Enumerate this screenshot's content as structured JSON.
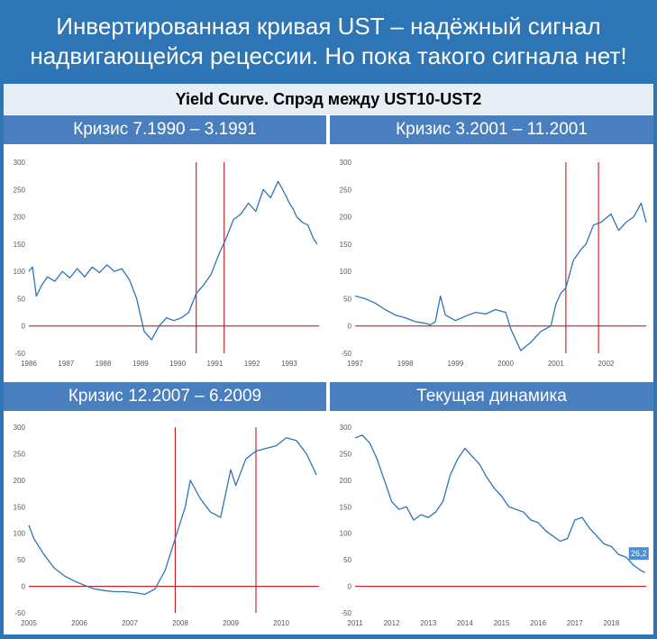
{
  "title": "Инвертированная кривая UST – надёжный сигнал\nнадвигающейся рецессии. Но пока такого сигнала нет!",
  "subtitle": "Yield Curve. Спрэд между UST10-UST2",
  "colors": {
    "header_bg": "#2e75b6",
    "panel_title_bg": "#4a7fbf",
    "line": "#2e75b6",
    "zero_line": "#c00000",
    "crisis_line": "#c00000",
    "label_bg": "#4a8fd4"
  },
  "chart_data": [
    {
      "type": "line",
      "title": "Кризис 7.1990 – 3.1991",
      "xlim": [
        1986,
        1993.8
      ],
      "ylim": [
        -50,
        300
      ],
      "yticks": [
        -50,
        0,
        50,
        100,
        150,
        200,
        250,
        300
      ],
      "xticks": [
        "1986",
        "1987",
        "1988",
        "1989",
        "1990",
        "1991",
        "1992",
        "1993"
      ],
      "crisis_markers": [
        1990.5,
        1991.25
      ],
      "series": [
        {
          "x": [
            1986.0,
            1986.1,
            1986.2,
            1986.35,
            1986.5,
            1986.7,
            1986.9,
            1987.1,
            1987.3,
            1987.5,
            1987.7,
            1987.9,
            1988.1,
            1988.3,
            1988.5,
            1988.7,
            1988.9,
            1989.0,
            1989.1,
            1989.3,
            1989.5,
            1989.7,
            1989.9,
            1990.1,
            1990.3,
            1990.5,
            1990.7,
            1990.9,
            1991.1,
            1991.3,
            1991.5,
            1991.7,
            1991.9,
            1992.1,
            1992.3,
            1992.5,
            1992.7,
            1992.9,
            1993.0,
            1993.1,
            1993.2,
            1993.35,
            1993.5,
            1993.65,
            1993.75
          ],
          "values": [
            100,
            108,
            55,
            75,
            90,
            82,
            100,
            88,
            105,
            90,
            108,
            98,
            112,
            100,
            105,
            85,
            50,
            20,
            -10,
            -25,
            0,
            15,
            10,
            15,
            25,
            60,
            75,
            95,
            130,
            160,
            195,
            205,
            225,
            210,
            250,
            235,
            265,
            240,
            225,
            215,
            200,
            190,
            185,
            160,
            150
          ]
        }
      ]
    },
    {
      "type": "line",
      "title": "Кризис 3.2001 – 11.2001",
      "xlim": [
        1997,
        2002.8
      ],
      "ylim": [
        -50,
        300
      ],
      "yticks": [
        -50,
        0,
        50,
        100,
        150,
        200,
        250,
        300
      ],
      "xticks": [
        "1997",
        "1998",
        "1999",
        "2000",
        "2001",
        "2002"
      ],
      "crisis_markers": [
        2001.2,
        2001.85
      ],
      "series": [
        {
          "x": [
            1997.0,
            1997.2,
            1997.4,
            1997.6,
            1997.8,
            1998.0,
            1998.2,
            1998.4,
            1998.5,
            1998.6,
            1998.7,
            1998.8,
            1999.0,
            1999.2,
            1999.4,
            1999.6,
            1999.8,
            2000.0,
            2000.1,
            2000.3,
            2000.5,
            2000.7,
            2000.9,
            2001.0,
            2001.1,
            2001.2,
            2001.35,
            2001.5,
            2001.6,
            2001.75,
            2001.9,
            2002.1,
            2002.25,
            2002.4,
            2002.55,
            2002.7,
            2002.8
          ],
          "values": [
            55,
            50,
            42,
            30,
            20,
            15,
            8,
            5,
            2,
            8,
            55,
            20,
            10,
            18,
            25,
            22,
            30,
            25,
            -5,
            -45,
            -30,
            -10,
            0,
            40,
            60,
            70,
            120,
            140,
            150,
            185,
            190,
            205,
            175,
            190,
            200,
            225,
            190
          ]
        }
      ]
    },
    {
      "type": "line",
      "title": "Кризис 12.2007 – 6.2009",
      "xlim": [
        2005,
        2010.75
      ],
      "ylim": [
        -50,
        300
      ],
      "yticks": [
        -50,
        0,
        50,
        100,
        150,
        200,
        250,
        300
      ],
      "xticks": [
        "2005",
        "2006",
        "2007",
        "2008",
        "2009",
        "2010"
      ],
      "crisis_markers": [
        2007.9,
        2009.5
      ],
      "series": [
        {
          "x": [
            2005.0,
            2005.1,
            2005.3,
            2005.5,
            2005.7,
            2005.9,
            2006.1,
            2006.3,
            2006.5,
            2006.7,
            2006.9,
            2007.1,
            2007.3,
            2007.5,
            2007.7,
            2007.9,
            2008.1,
            2008.2,
            2008.4,
            2008.6,
            2008.8,
            2009.0,
            2009.1,
            2009.3,
            2009.5,
            2009.7,
            2009.9,
            2010.1,
            2010.3,
            2010.5,
            2010.7
          ],
          "values": [
            115,
            90,
            60,
            35,
            20,
            10,
            2,
            -5,
            -8,
            -10,
            -10,
            -12,
            -15,
            -5,
            30,
            90,
            150,
            200,
            165,
            140,
            130,
            220,
            190,
            240,
            255,
            260,
            265,
            280,
            275,
            250,
            210
          ]
        }
      ]
    },
    {
      "type": "line",
      "title": "Текущая динамика",
      "xlim": [
        2011,
        2018.95
      ],
      "ylim": [
        -50,
        300
      ],
      "yticks": [
        -50,
        0,
        50,
        100,
        150,
        200,
        250,
        300
      ],
      "xticks": [
        "2011",
        "2012",
        "2013",
        "2014",
        "2015",
        "2016",
        "2017",
        "2018"
      ],
      "last_value_label": "26,2",
      "series": [
        {
          "x": [
            2011.0,
            2011.2,
            2011.4,
            2011.6,
            2011.8,
            2012.0,
            2012.2,
            2012.4,
            2012.6,
            2012.8,
            2013.0,
            2013.2,
            2013.4,
            2013.6,
            2013.8,
            2014.0,
            2014.2,
            2014.4,
            2014.6,
            2014.8,
            2015.0,
            2015.2,
            2015.4,
            2015.6,
            2015.8,
            2016.0,
            2016.2,
            2016.4,
            2016.6,
            2016.8,
            2017.0,
            2017.2,
            2017.4,
            2017.6,
            2017.8,
            2018.0,
            2018.2,
            2018.4,
            2018.6,
            2018.8,
            2018.92
          ],
          "values": [
            280,
            285,
            270,
            240,
            200,
            160,
            145,
            150,
            125,
            135,
            130,
            140,
            160,
            210,
            240,
            260,
            245,
            230,
            205,
            185,
            170,
            150,
            145,
            140,
            125,
            120,
            105,
            95,
            85,
            90,
            125,
            130,
            110,
            95,
            80,
            75,
            60,
            55,
            40,
            30,
            26.2
          ]
        }
      ]
    }
  ]
}
